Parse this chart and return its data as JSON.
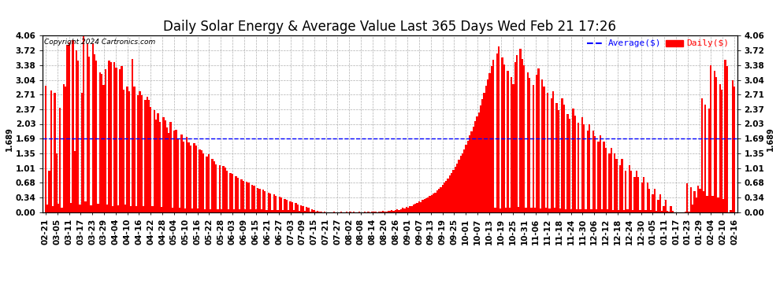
{
  "title": "Daily Solar Energy & Average Value Last 365 Days Wed Feb 21 17:26",
  "copyright": "Copyright 2024 Cartronics.com",
  "legend_avg": "Average($)",
  "legend_daily": "Daily($)",
  "avg_value": 1.689,
  "avg_label": "1.689",
  "yticks": [
    0.0,
    0.34,
    0.68,
    1.01,
    1.35,
    1.69,
    2.03,
    2.37,
    2.71,
    3.04,
    3.38,
    3.72,
    4.06
  ],
  "ymax": 4.06,
  "bar_color": "#ff0000",
  "avg_line_color": "#0000ff",
  "avg_line_style": "--",
  "background_color": "#ffffff",
  "grid_color": "#b0b0b0",
  "title_fontsize": 12,
  "tick_fontsize": 7.5,
  "tick_fontweight": "bold",
  "xlabel_rotation": 90,
  "xtick_labels": [
    "02-21",
    "03-05",
    "03-11",
    "03-17",
    "03-23",
    "03-29",
    "04-04",
    "04-10",
    "04-16",
    "04-22",
    "04-28",
    "05-04",
    "05-10",
    "05-16",
    "05-22",
    "05-28",
    "06-03",
    "06-09",
    "06-15",
    "06-21",
    "06-27",
    "07-03",
    "07-09",
    "07-15",
    "07-21",
    "07-27",
    "08-02",
    "08-08",
    "08-14",
    "08-20",
    "08-26",
    "09-01",
    "09-07",
    "09-13",
    "09-19",
    "09-25",
    "10-01",
    "10-07",
    "10-13",
    "10-19",
    "10-25",
    "10-31",
    "11-06",
    "11-12",
    "11-18",
    "11-24",
    "11-30",
    "12-06",
    "12-12",
    "12-18",
    "12-24",
    "12-30",
    "01-05",
    "01-11",
    "01-17",
    "01-23",
    "01-29",
    "02-04",
    "02-10",
    "02-16"
  ],
  "daily_values": [
    2.91,
    0.18,
    0.95,
    2.8,
    0.15,
    2.75,
    1.35,
    0.2,
    2.4,
    0.1,
    2.95,
    2.88,
    3.85,
    3.9,
    0.22,
    3.95,
    1.4,
    3.72,
    3.48,
    0.18,
    2.75,
    4.05,
    0.25,
    3.88,
    3.58,
    0.16,
    3.88,
    3.62,
    3.48,
    0.2,
    3.22,
    3.18,
    2.92,
    3.28,
    0.18,
    3.48,
    3.44,
    0.15,
    3.45,
    3.32,
    0.17,
    3.28,
    3.36,
    2.82,
    0.18,
    2.88,
    2.78,
    0.15,
    3.52,
    2.88,
    0.15,
    2.68,
    2.78,
    2.68,
    0.14,
    2.58,
    2.65,
    2.58,
    2.42,
    0.14,
    2.35,
    2.13,
    2.28,
    2.08,
    0.12,
    2.18,
    2.12,
    1.94,
    1.82,
    2.08,
    0.11,
    1.88,
    1.9,
    1.68,
    0.11,
    1.78,
    1.63,
    0.09,
    1.74,
    1.6,
    1.54,
    0.09,
    1.58,
    1.53,
    0.09,
    1.45,
    1.43,
    1.36,
    0.08,
    1.28,
    1.34,
    0.08,
    1.22,
    1.18,
    1.1,
    0.07,
    1.08,
    0.07,
    1.06,
    1.02,
    0.95,
    0.07,
    0.9,
    0.88,
    0.07,
    0.83,
    0.8,
    0.07,
    0.76,
    0.73,
    0.07,
    0.7,
    0.68,
    0.07,
    0.63,
    0.61,
    0.07,
    0.56,
    0.55,
    0.07,
    0.52,
    0.48,
    0.06,
    0.46,
    0.44,
    0.06,
    0.41,
    0.38,
    0.06,
    0.36,
    0.34,
    0.06,
    0.3,
    0.28,
    0.05,
    0.26,
    0.24,
    0.05,
    0.21,
    0.18,
    0.04,
    0.16,
    0.14,
    0.03,
    0.12,
    0.1,
    0.02,
    0.08,
    0.06,
    0.01,
    0.04,
    0.02,
    0.01,
    0.0,
    0.01,
    0.0,
    0.0,
    0.0,
    0.0,
    0.01,
    0.0,
    0.0,
    0.0,
    0.01,
    0.0,
    0.0,
    0.01,
    0.0,
    0.01,
    0.0,
    0.01,
    0.0,
    0.0,
    0.01,
    0.0,
    0.0,
    0.01,
    0.0,
    0.01,
    0.0,
    0.01,
    0.02,
    0.01,
    0.0,
    0.01,
    0.02,
    0.03,
    0.01,
    0.02,
    0.04,
    0.03,
    0.05,
    0.04,
    0.06,
    0.07,
    0.05,
    0.08,
    0.1,
    0.09,
    0.12,
    0.11,
    0.14,
    0.15,
    0.18,
    0.2,
    0.22,
    0.25,
    0.24,
    0.28,
    0.3,
    0.32,
    0.35,
    0.38,
    0.4,
    0.43,
    0.46,
    0.5,
    0.54,
    0.58,
    0.63,
    0.68,
    0.72,
    0.78,
    0.84,
    0.9,
    0.97,
    1.04,
    1.12,
    1.2,
    1.3,
    1.36,
    1.45,
    1.56,
    1.65,
    1.76,
    1.85,
    1.96,
    2.1,
    2.2,
    2.3,
    2.45,
    2.6,
    2.75,
    2.9,
    3.05,
    3.2,
    3.35,
    3.5,
    0.1,
    3.65,
    3.8,
    0.09,
    3.55,
    3.4,
    0.1,
    3.25,
    0.1,
    3.1,
    2.95,
    3.45,
    3.6,
    0.12,
    3.75,
    3.52,
    3.38,
    0.11,
    3.22,
    3.08,
    0.11,
    2.92,
    0.1,
    3.15,
    3.3,
    0.09,
    3.05,
    2.88,
    0.1,
    2.75,
    0.09,
    2.62,
    2.78,
    0.1,
    2.5,
    2.35,
    0.09,
    2.62,
    2.48,
    0.08,
    2.25,
    2.15,
    0.08,
    2.38,
    2.22,
    0.08,
    2.05,
    0.08,
    2.18,
    2.02,
    0.07,
    1.88,
    2.02,
    0.07,
    1.88,
    1.75,
    0.07,
    1.62,
    1.76,
    0.07,
    1.62,
    1.48,
    0.07,
    1.35,
    1.48,
    0.06,
    1.35,
    1.22,
    0.06,
    1.08,
    1.22,
    0.06,
    0.95,
    0.08,
    1.08,
    0.95,
    0.05,
    0.82,
    0.95,
    0.82,
    0.05,
    0.68,
    0.82,
    0.05,
    0.68,
    0.55,
    0.05,
    0.42,
    0.55,
    0.04,
    0.28,
    0.42,
    0.04,
    0.15,
    0.28,
    0.04,
    0.02,
    0.15,
    0.04,
    0.0,
    0.0,
    0.0,
    0.0,
    0.0,
    0.0,
    0.01,
    0.67,
    0.01,
    0.58,
    0.18,
    0.48,
    0.35,
    0.62,
    0.55,
    2.62,
    0.48,
    2.48,
    0.38,
    2.38,
    3.38,
    0.38,
    3.25,
    3.1,
    0.35,
    2.95,
    2.82,
    0.3,
    3.5,
    3.35,
    0.0,
    0.05,
    3.04,
    2.88
  ]
}
